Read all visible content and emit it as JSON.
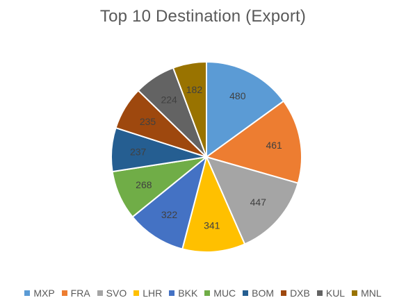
{
  "chart_data": {
    "type": "pie",
    "title": "Top 10 Destination (Export)",
    "categories": [
      "MXP",
      "FRA",
      "SVO",
      "LHR",
      "BKK",
      "MUC",
      "BOM",
      "DXB",
      "KUL",
      "MNL"
    ],
    "values": [
      480,
      461,
      447,
      341,
      322,
      268,
      237,
      235,
      224,
      182
    ],
    "colors": [
      "#5b9bd5",
      "#ed7d31",
      "#a5a5a5",
      "#ffc000",
      "#4472c4",
      "#70ad47",
      "#255e91",
      "#9e480e",
      "#636363",
      "#997300"
    ],
    "data_labels": [
      "480",
      "461",
      "447",
      "341",
      "322",
      "268",
      "237",
      "235",
      "224",
      "182"
    ],
    "legend_position": "bottom",
    "start_angle": "top, clockwise"
  }
}
